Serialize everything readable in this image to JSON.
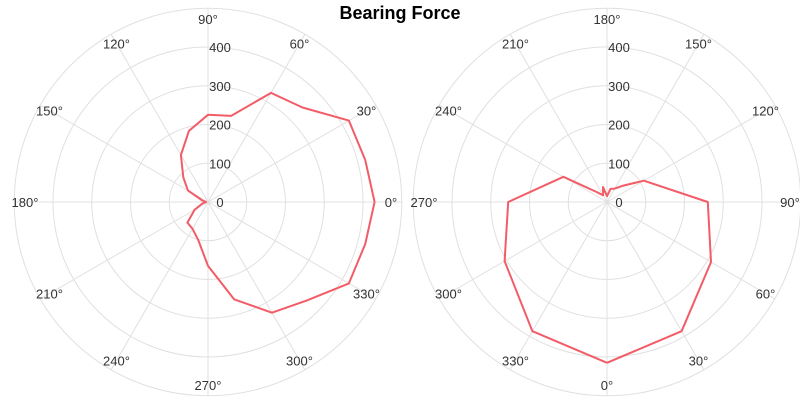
{
  "title": "Bearing Force",
  "colors": {
    "series": "#f25c67",
    "grid": "#e0e0e0",
    "text": "#333333"
  },
  "chart_data": [
    {
      "type": "line",
      "subtype": "polar",
      "title": "",
      "rotation_deg": 0,
      "direction": "counterclockwise",
      "radial_range": [
        0,
        400
      ],
      "radial_ticks": [
        0,
        100,
        200,
        300,
        400
      ],
      "radial_tick_labels": [
        "0",
        "100",
        "200",
        "300",
        "400"
      ],
      "angular_ticks": [
        0,
        30,
        60,
        90,
        120,
        150,
        180,
        210,
        240,
        270,
        300,
        330
      ],
      "angular_tick_labels": [
        "0°",
        "30°",
        "60°",
        "90°",
        "120°",
        "150°",
        "180°",
        "210°",
        "240°",
        "270°",
        "300°",
        "330°"
      ],
      "grid": true,
      "legend": "none",
      "series": [
        {
          "theta": [
            0,
            15,
            30,
            45,
            60,
            75,
            90,
            105,
            120,
            135,
            150,
            165,
            180,
            195,
            210,
            225,
            240,
            255,
            270,
            285,
            300,
            315,
            330,
            345,
            360
          ],
          "r": [
            430,
            420,
            420,
            345,
            325,
            230,
            225,
            190,
            140,
            90,
            60,
            15,
            5,
            15,
            40,
            75,
            80,
            100,
            165,
            260,
            330,
            360,
            420,
            420,
            430
          ]
        }
      ]
    },
    {
      "type": "line",
      "subtype": "polar",
      "title": "",
      "rotation_deg": 270,
      "direction": "counterclockwise",
      "radial_range": [
        0,
        400
      ],
      "radial_ticks": [
        0,
        100,
        200,
        300,
        400
      ],
      "radial_tick_labels": [
        "0",
        "100",
        "200",
        "300",
        "400"
      ],
      "angular_ticks": [
        0,
        30,
        60,
        90,
        120,
        150,
        180,
        210,
        240,
        270,
        300,
        330
      ],
      "angular_tick_labels": [
        "0°",
        "30°",
        "60°",
        "90°",
        "120°",
        "150°",
        "180°",
        "210°",
        "240°",
        "270°",
        "300°",
        "330°"
      ],
      "grid": true,
      "legend": "none",
      "series": [
        {
          "theta": [
            0,
            30,
            60,
            90,
            120,
            135,
            150,
            165,
            180,
            195,
            210,
            225,
            240,
            270,
            300,
            330,
            360
          ],
          "r": [
            415,
            385,
            310,
            260,
            110,
            60,
            40,
            35,
            15,
            40,
            20,
            35,
            130,
            255,
            305,
            385,
            415
          ]
        }
      ]
    }
  ]
}
